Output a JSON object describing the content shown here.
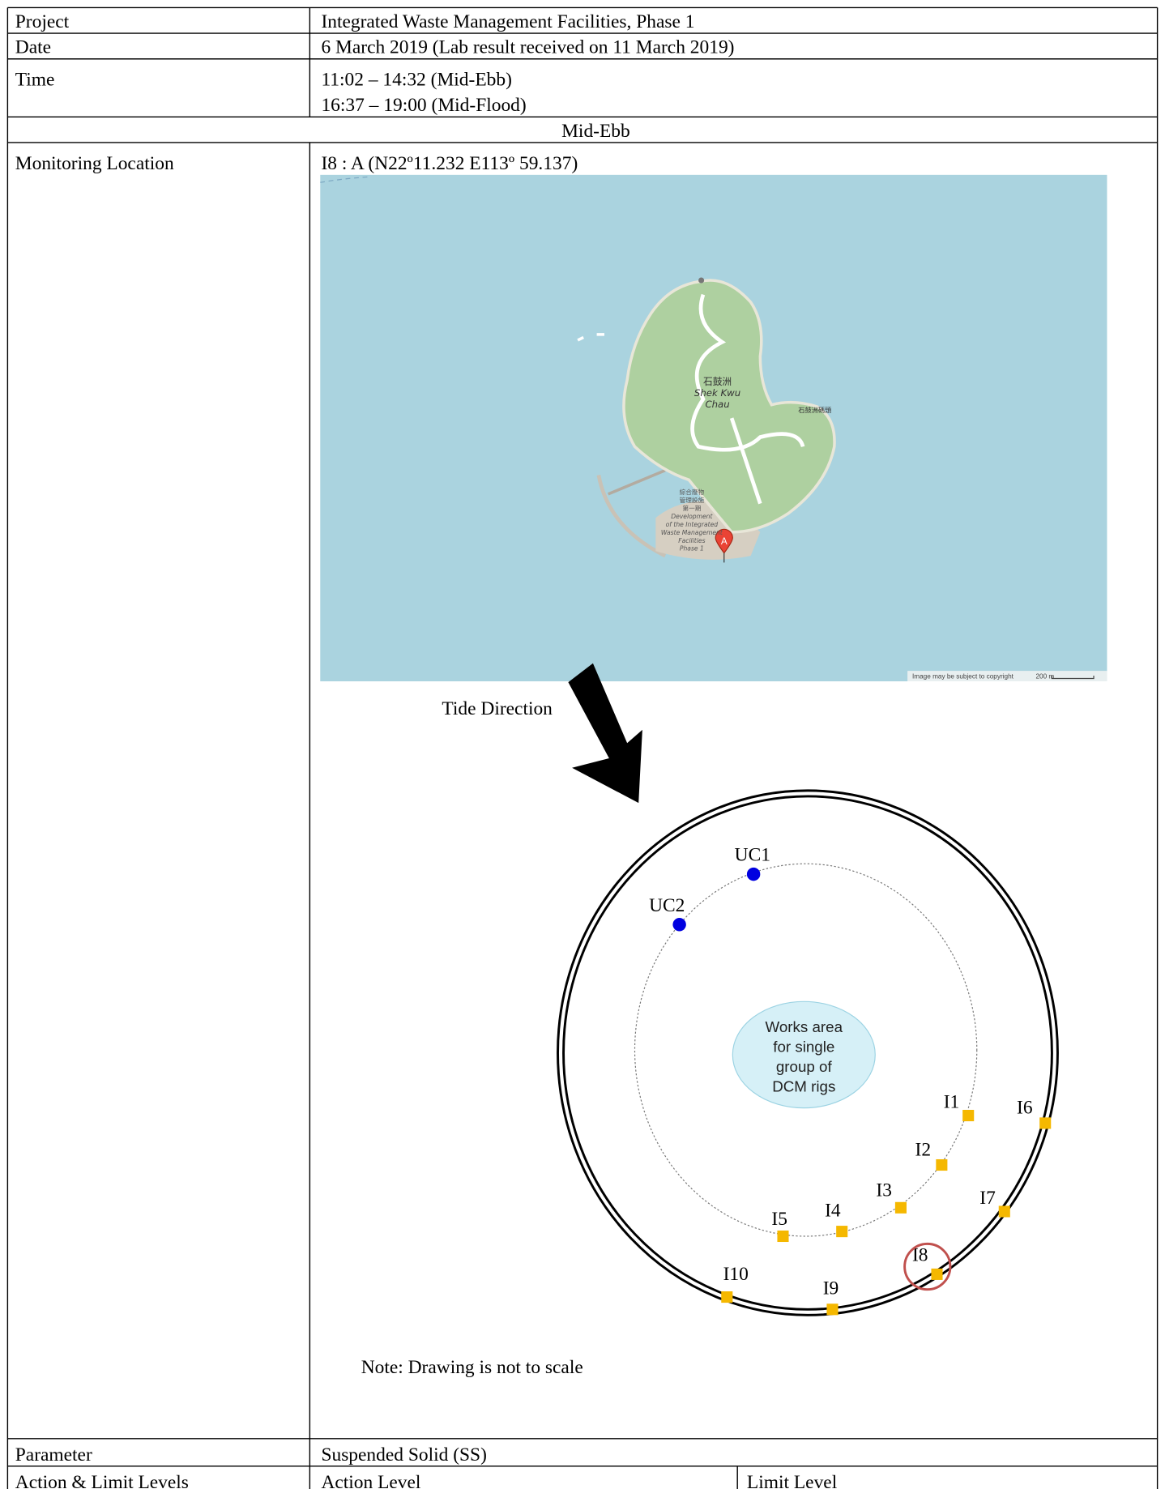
{
  "rows": [
    {
      "label": "Project",
      "value": "Integrated Waste Management Facilities, Phase 1"
    },
    {
      "label": "Date",
      "value": "6 March 2019 (Lab result received on 11 March 2019)"
    },
    {
      "label": "Time",
      "lines": [
        "11:02 – 14:32 (Mid-Ebb)",
        "16:37 – 19:00 (Mid-Flood)"
      ]
    }
  ],
  "section": "Mid-Ebb",
  "location": {
    "label": "Monitoring Location",
    "value": "I8 : A (N22º11.232 E113º 59.137)"
  },
  "map": {
    "island": [
      "石鼓洲",
      "Shek Kwu",
      "Chau"
    ],
    "pier": "石鼓洲碼頭",
    "facility": [
      "綜合廢物",
      "管理設施",
      "第一期",
      "Development",
      "of the Integrated",
      "Waste Management",
      "Facilities",
      "Phase 1"
    ],
    "marker": "A",
    "attribution": "Image may be subject to copyright",
    "scale": "200 m"
  },
  "diagram": {
    "tide": "Tide Direction",
    "works_area": [
      "Works area",
      "for single",
      "group of",
      "DCM rigs"
    ],
    "stations": [
      "UC1",
      "UC2",
      "I1",
      "I2",
      "I3",
      "I4",
      "I5",
      "I6",
      "I7",
      "I8",
      "I9",
      "I10"
    ],
    "note": "Note: Drawing is not to scale"
  },
  "parameter": {
    "label": "Parameter",
    "value": "Suspended Solid (SS)"
  },
  "levels": {
    "label": "Action & Limit Levels",
    "action": "Action Level",
    "limit": "Limit Level"
  }
}
